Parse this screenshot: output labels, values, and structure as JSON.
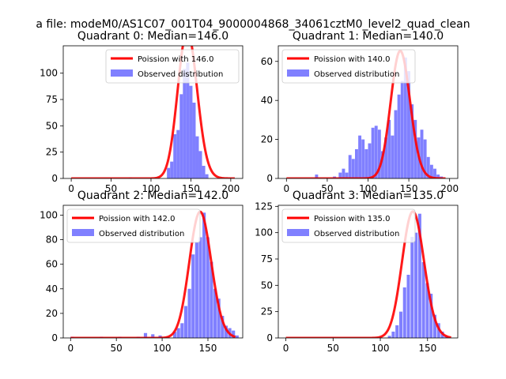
{
  "suptitle": "a file: modeM0/AS1C07_001T04_9000004868_34061cztM0_level2_quad_clean",
  "colors": {
    "poisson": "#ff0000",
    "hist": "#8080ff",
    "axis": "#000000"
  },
  "chart_data": [
    {
      "type": "bar",
      "title": "Quadrant 0: Median=146.0",
      "median": 146.0,
      "xlim": [
        -10,
        215
      ],
      "ylim": [
        0,
        126
      ],
      "xticks": [
        0,
        50,
        100,
        150,
        200
      ],
      "yticks": [
        0,
        25,
        50,
        75,
        100
      ],
      "legend": {
        "placement": "top-right",
        "poisson_label": "Poission with 146.0",
        "hist_label": "Observed distribution"
      },
      "bin_width": 4,
      "bins": [
        [
          72,
          1
        ],
        [
          120,
          10
        ],
        [
          124,
          16
        ],
        [
          128,
          42
        ],
        [
          132,
          46
        ],
        [
          136,
          80
        ],
        [
          140,
          104
        ],
        [
          144,
          110
        ],
        [
          148,
          88
        ],
        [
          152,
          72
        ],
        [
          156,
          40
        ],
        [
          160,
          26
        ],
        [
          164,
          12
        ],
        [
          168,
          4
        ]
      ],
      "poisson": {
        "lambda": 146,
        "scale": 4250,
        "range": [
          0,
          205
        ]
      }
    },
    {
      "type": "bar",
      "title": "Quadrant 1: Median=140.0",
      "median": 140.0,
      "xlim": [
        -10,
        210
      ],
      "ylim": [
        0,
        68
      ],
      "xticks": [
        0,
        50,
        100,
        150,
        200
      ],
      "yticks": [
        0,
        20,
        40,
        60
      ],
      "legend": {
        "placement": "top-left",
        "poisson_label": "Poission with 140.0",
        "hist_label": "Observed distribution"
      },
      "bin_width": 3.8,
      "bins": [
        [
          35,
          2
        ],
        [
          57,
          1
        ],
        [
          64,
          3
        ],
        [
          68,
          5
        ],
        [
          72,
          3
        ],
        [
          76,
          12
        ],
        [
          80,
          10
        ],
        [
          84,
          15
        ],
        [
          88,
          22
        ],
        [
          92,
          20
        ],
        [
          96,
          15
        ],
        [
          100,
          18
        ],
        [
          104,
          26
        ],
        [
          108,
          27
        ],
        [
          112,
          25
        ],
        [
          116,
          14
        ],
        [
          120,
          21
        ],
        [
          124,
          30
        ],
        [
          128,
          22
        ],
        [
          132,
          35
        ],
        [
          136,
          43
        ],
        [
          140,
          50
        ],
        [
          144,
          62
        ],
        [
          148,
          55
        ],
        [
          152,
          38
        ],
        [
          156,
          30
        ],
        [
          160,
          21
        ],
        [
          164,
          25
        ],
        [
          168,
          20
        ],
        [
          172,
          11
        ],
        [
          176,
          7
        ],
        [
          180,
          5
        ],
        [
          184,
          2
        ],
        [
          188,
          1
        ]
      ],
      "poisson": {
        "lambda": 140,
        "scale": 1940,
        "range": [
          0,
          195
        ]
      }
    },
    {
      "type": "bar",
      "title": "Quadrant 2: Median=142.0",
      "median": 142.0,
      "xlim": [
        -8,
        188
      ],
      "ylim": [
        0,
        108
      ],
      "xticks": [
        0,
        50,
        100,
        150
      ],
      "yticks": [
        0,
        20,
        40,
        60,
        80,
        100
      ],
      "legend": {
        "placement": "top-left",
        "poisson_label": "Poission with 142.0",
        "hist_label": "Observed distribution"
      },
      "bin_width": 3.6,
      "bins": [
        [
          0,
          1
        ],
        [
          32,
          1
        ],
        [
          52,
          1
        ],
        [
          72,
          1
        ],
        [
          80,
          4
        ],
        [
          88,
          3
        ],
        [
          96,
          2
        ],
        [
          104,
          1
        ],
        [
          112,
          5
        ],
        [
          116,
          8
        ],
        [
          120,
          12
        ],
        [
          124,
          26
        ],
        [
          128,
          40
        ],
        [
          132,
          68
        ],
        [
          136,
          78
        ],
        [
          140,
          82
        ],
        [
          144,
          102
        ],
        [
          148,
          82
        ],
        [
          152,
          62
        ],
        [
          156,
          40
        ],
        [
          160,
          32
        ],
        [
          164,
          18
        ],
        [
          168,
          10
        ],
        [
          172,
          8
        ],
        [
          176,
          6
        ],
        [
          180,
          2
        ]
      ],
      "poisson": {
        "lambda": 142,
        "scale": 3070,
        "range": [
          0,
          180
        ]
      }
    },
    {
      "type": "bar",
      "title": "Quadrant 3: Median=135.0",
      "median": 135.0,
      "xlim": [
        -8,
        182
      ],
      "ylim": [
        0,
        126
      ],
      "xticks": [
        0,
        50,
        100,
        150
      ],
      "yticks": [
        0,
        25,
        50,
        75,
        100,
        125
      ],
      "legend": {
        "placement": "top-left",
        "poisson_label": "Poission with 135.0",
        "hist_label": "Observed distribution"
      },
      "bin_width": 3.4,
      "bins": [
        [
          108,
          2
        ],
        [
          112,
          6
        ],
        [
          116,
          12
        ],
        [
          120,
          25
        ],
        [
          124,
          48
        ],
        [
          128,
          60
        ],
        [
          132,
          96
        ],
        [
          136,
          100
        ],
        [
          140,
          118
        ],
        [
          144,
          72
        ],
        [
          148,
          52
        ],
        [
          152,
          42
        ],
        [
          156,
          22
        ],
        [
          160,
          14
        ],
        [
          164,
          6
        ],
        [
          168,
          2
        ]
      ],
      "poisson": {
        "lambda": 135,
        "scale": 3500,
        "range": [
          0,
          175
        ]
      }
    }
  ]
}
